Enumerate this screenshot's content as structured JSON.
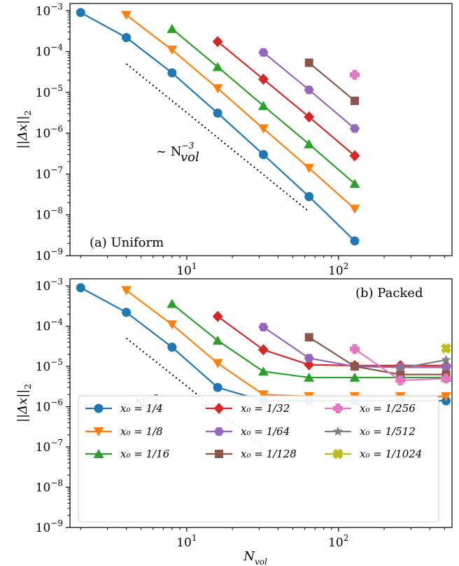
{
  "chart_data": [
    {
      "type": "line",
      "panel_label": "(a) Uniform",
      "ylabel": "||Δx||",
      "ylabel_sub": "2",
      "xscale": "log",
      "yscale": "log",
      "xlim": [
        1.7,
        560
      ],
      "ylim": [
        1e-09,
        0.0015
      ],
      "xticks": [
        {
          "base": "10",
          "exp": "1"
        },
        {
          "base": "10",
          "exp": "2"
        }
      ],
      "yticks": [
        {
          "base": "10",
          "exp": "−3"
        },
        {
          "base": "10",
          "exp": "−4"
        },
        {
          "base": "10",
          "exp": "−5"
        },
        {
          "base": "10",
          "exp": "−6"
        },
        {
          "base": "10",
          "exp": "−7"
        },
        {
          "base": "10",
          "exp": "−8"
        },
        {
          "base": "10",
          "exp": "−9"
        }
      ],
      "reference_line": {
        "label_prefix": "~ N",
        "label_sub": "vol",
        "label_sup": "−3",
        "x": [
          4,
          64
        ],
        "y": [
          5e-05,
          1.2e-08
        ]
      },
      "series": [
        {
          "name": "x0 = 1/4",
          "x": [
            2,
            4,
            8,
            16,
            32,
            64,
            128
          ],
          "y": [
            0.0009,
            0.00022,
            3e-05,
            3.1e-06,
            3e-07,
            2.8e-08,
            2.3e-09
          ]
        },
        {
          "name": "x0 = 1/8",
          "x": [
            4,
            8,
            16,
            32,
            64,
            128
          ],
          "y": [
            0.00078,
            0.00011,
            1.25e-05,
            1.3e-06,
            1.4e-07,
            1.4e-08
          ]
        },
        {
          "name": "x0 = 1/16",
          "x": [
            8,
            16,
            32,
            64,
            128
          ],
          "y": [
            0.00036,
            4.2e-05,
            4.7e-06,
            5.4e-07,
            5.8e-08
          ]
        },
        {
          "name": "x0 = 1/32",
          "x": [
            16,
            32,
            64,
            128
          ],
          "y": [
            0.000175,
            2.1e-05,
            2.5e-06,
            2.8e-07
          ]
        },
        {
          "name": "x0 = 1/64",
          "x": [
            32,
            64,
            128
          ],
          "y": [
            9.5e-05,
            1.15e-05,
            1.3e-06
          ]
        },
        {
          "name": "x0 = 1/128",
          "x": [
            64,
            128
          ],
          "y": [
            5.3e-05,
            6.2e-06
          ]
        },
        {
          "name": "x0 = 1/256",
          "x": [
            128
          ],
          "y": [
            2.7e-05
          ]
        }
      ]
    },
    {
      "type": "line",
      "panel_label": "(b) Packed",
      "xlabel": "N",
      "xlabel_sub": "vol",
      "ylabel": "||Δx||",
      "ylabel_sub": "2",
      "xscale": "log",
      "yscale": "log",
      "xlim": [
        1.7,
        560
      ],
      "ylim": [
        1e-09,
        0.0015
      ],
      "xticks": [
        {
          "base": "10",
          "exp": "1"
        },
        {
          "base": "10",
          "exp": "2"
        }
      ],
      "yticks": [
        {
          "base": "10",
          "exp": "−3"
        },
        {
          "base": "10",
          "exp": "−4"
        },
        {
          "base": "10",
          "exp": "−5"
        },
        {
          "base": "10",
          "exp": "−6"
        },
        {
          "base": "10",
          "exp": "−7"
        },
        {
          "base": "10",
          "exp": "−8"
        },
        {
          "base": "10",
          "exp": "−9"
        }
      ],
      "reference_line": {
        "label_prefix": "~ N",
        "label_sub": "vol",
        "label_sup": "−3",
        "x": [
          4,
          32
        ],
        "y": [
          5e-05,
          1e-07
        ]
      },
      "legend_position": "lower center",
      "series": [
        {
          "name": "x0 = 1/4",
          "x": [
            2,
            4,
            8,
            16,
            32,
            64,
            128,
            256,
            512
          ],
          "y": [
            0.0009,
            0.00022,
            3e-05,
            3e-06,
            1.4e-06,
            1.4e-06,
            1.4e-06,
            1.4e-06,
            1.4e-06
          ]
        },
        {
          "name": "x0 = 1/8",
          "x": [
            4,
            8,
            16,
            32,
            64,
            128,
            256,
            512
          ],
          "y": [
            0.00078,
            0.00011,
            1.2e-05,
            2e-06,
            1.8e-06,
            1.8e-06,
            1.8e-06,
            1.8e-06
          ]
        },
        {
          "name": "x0 = 1/16",
          "x": [
            8,
            16,
            32,
            64,
            128,
            256,
            512
          ],
          "y": [
            0.00036,
            4.4e-05,
            7.5e-06,
            5.3e-06,
            5.3e-06,
            5.3e-06,
            5.3e-06
          ]
        },
        {
          "name": "x0 = 1/32",
          "x": [
            16,
            32,
            64,
            128,
            256,
            512
          ],
          "y": [
            0.000175,
            2.6e-05,
            1.1e-05,
            1.05e-05,
            1.05e-05,
            1.05e-05
          ]
        },
        {
          "name": "x0 = 1/64",
          "x": [
            32,
            64,
            128,
            256,
            512
          ],
          "y": [
            9.5e-05,
            1.6e-05,
            1e-05,
            9.5e-06,
            9.5e-06
          ]
        },
        {
          "name": "x0 = 1/128",
          "x": [
            64,
            128,
            256,
            512
          ],
          "y": [
            5.3e-05,
            1e-05,
            6.3e-06,
            6.3e-06
          ]
        },
        {
          "name": "x0 = 1/256",
          "x": [
            128,
            256,
            512
          ],
          "y": [
            2.7e-05,
            4.5e-06,
            5e-06
          ]
        },
        {
          "name": "x0 = 1/512",
          "x": [
            256,
            512
          ],
          "y": [
            9e-06,
            1.45e-05
          ]
        },
        {
          "name": "x0 = 1/1024",
          "x": [
            512
          ],
          "y": [
            2.8e-05
          ]
        }
      ]
    }
  ],
  "legend": [
    {
      "name": "x0 = 1/4",
      "text": "x₀ = 1/4",
      "color": "#1f77b4",
      "marker": "circle"
    },
    {
      "name": "x0 = 1/8",
      "text": "x₀ = 1/8",
      "color": "#ff7f0e",
      "marker": "triangle-down"
    },
    {
      "name": "x0 = 1/16",
      "text": "x₀ = 1/16",
      "color": "#2ca02c",
      "marker": "triangle-up"
    },
    {
      "name": "x0 = 1/32",
      "text": "x₀ = 1/32",
      "color": "#d62728",
      "marker": "diamond"
    },
    {
      "name": "x0 = 1/64",
      "text": "x₀ = 1/64",
      "color": "#9467bd",
      "marker": "hexagon"
    },
    {
      "name": "x0 = 1/128",
      "text": "x₀ = 1/128",
      "color": "#8c564b",
      "marker": "square"
    },
    {
      "name": "x0 = 1/256",
      "text": "x₀ = 1/256",
      "color": "#e377c2",
      "marker": "plus"
    },
    {
      "name": "x0 = 1/512",
      "text": "x₀ = 1/512",
      "color": "#7f7f7f",
      "marker": "star"
    },
    {
      "name": "x0 = 1/1024",
      "text": "x₀ = 1/1024",
      "color": "#bcbd22",
      "marker": "x"
    }
  ]
}
